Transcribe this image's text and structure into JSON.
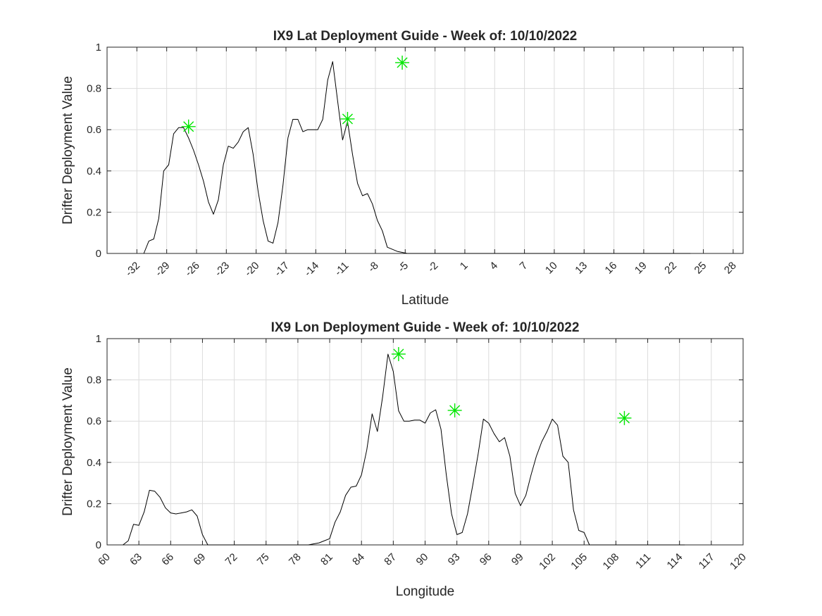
{
  "chart_data": [
    {
      "type": "line",
      "title": "IX9 Lat Deployment Guide - Week of: 10/10/2022",
      "xlabel": "Latitude",
      "ylabel": "Drifter Deployment Value",
      "xlim": [
        -35,
        29
      ],
      "ylim": [
        0,
        1
      ],
      "grid": true,
      "x_ticks": [
        -32,
        -29,
        -26,
        -23,
        -20,
        -17,
        -14,
        -11,
        -8,
        -5,
        -2,
        1,
        4,
        7,
        10,
        13,
        16,
        19,
        22,
        25,
        28
      ],
      "x_tick_labels": [
        "-32",
        "-29",
        "-26",
        "-23",
        "-20",
        "-17",
        "-14",
        "-11",
        "-8",
        "-5",
        "-2",
        "1",
        "4",
        "7",
        "10",
        "13",
        "16",
        "19",
        "22",
        "25",
        "28"
      ],
      "y_ticks": [
        0,
        0.2,
        0.4,
        0.6,
        0.8,
        1
      ],
      "y_tick_labels": [
        "0",
        "0.2",
        "0.4",
        "0.6",
        "0.8",
        "1"
      ],
      "series": [
        {
          "color": "#000000",
          "x": [
            -31.3,
            -30.8,
            -30.3,
            -29.8,
            -29.3,
            -28.8,
            -28.3,
            -27.8,
            -27.3,
            -26.8,
            -26.3,
            -25.8,
            -25.3,
            -24.8,
            -24.3,
            -23.8,
            -23.3,
            -22.8,
            -22.3,
            -21.8,
            -21.3,
            -20.8,
            -20.3,
            -19.8,
            -19.3,
            -18.8,
            -18.3,
            -17.8,
            -17.3,
            -16.8,
            -16.3,
            -15.8,
            -15.3,
            -14.8,
            -14.3,
            -13.8,
            -13.3,
            -12.8,
            -12.3,
            -11.8,
            -11.3,
            -10.8,
            -10.3,
            -9.8,
            -9.3,
            -8.8,
            -8.3,
            -7.8,
            -7.3,
            -6.8,
            -6.3,
            -5.8,
            -5.3,
            -4.8,
            -4.3,
            -3.8,
            -3.3,
            -2.8,
            -2.3,
            -1.8,
            -1.3,
            -0.8,
            -0.3,
            0.2,
            0.7,
            1.2,
            1.7,
            2.2,
            2.7,
            3.2,
            3.7,
            4.2,
            4.7,
            5.2,
            5.7,
            6.2,
            6.7,
            7.2,
            9.2,
            9.7,
            10.2,
            10.7,
            11.2,
            11.7,
            12.2,
            12.7,
            13.2,
            13.7,
            14.2,
            14.7,
            15.2,
            15.7,
            16.2,
            16.7,
            17.2,
            17.7,
            18.2,
            18.7,
            19.2,
            19.7,
            20.2,
            20.7,
            21.2,
            21.7,
            22.2,
            22.7,
            23.2,
            23.7
          ],
          "values": [
            0.0,
            0.06,
            0.07,
            0.17,
            0.4,
            0.43,
            0.58,
            0.61,
            0.61,
            0.56,
            0.5,
            0.43,
            0.35,
            0.25,
            0.19,
            0.26,
            0.43,
            0.52,
            0.51,
            0.54,
            0.59,
            0.61,
            0.48,
            0.3,
            0.16,
            0.06,
            0.05,
            0.15,
            0.33,
            0.56,
            0.65,
            0.65,
            0.59,
            0.6,
            0.6,
            0.6,
            0.65,
            0.84,
            0.93,
            0.74,
            0.55,
            0.64,
            0.48,
            0.34,
            0.28,
            0.29,
            0.24,
            0.16,
            0.11,
            0.03,
            0.02,
            0.01,
            0.005,
            0.0,
            0.0,
            0.0,
            0.0,
            0.0,
            0.0,
            0.0,
            0.0,
            0.0,
            0.0,
            0.0,
            0.0,
            0.0,
            0.0,
            0.0,
            0.0,
            0.0,
            0.0,
            0.0,
            0.0,
            0.0,
            0.0,
            0.0,
            0.0,
            0.0,
            0.0,
            0.0,
            0.0,
            0.0,
            0.0,
            0.0,
            0.0,
            0.0,
            0.0,
            0.0,
            0.0,
            0.0,
            0.0,
            0.0,
            0.0,
            0.0,
            0.0,
            0.0,
            0.0,
            0.0,
            0.0,
            0.0,
            0.0,
            0.0,
            0.0,
            0.0,
            0.0,
            0.0,
            0.0,
            0.0
          ]
        }
      ],
      "markers": {
        "color": "#00e600",
        "symbol": "asterisk",
        "x": [
          -26.8,
          -10.8,
          -5.3
        ],
        "y": [
          0.615,
          0.652,
          0.925
        ]
      }
    },
    {
      "type": "line",
      "title": "IX9 Lon Deployment Guide - Week of: 10/10/2022",
      "xlabel": "Longitude",
      "ylabel": "Drifter Deployment Value",
      "xlim": [
        60,
        120
      ],
      "ylim": [
        0,
        1
      ],
      "grid": true,
      "x_ticks": [
        60,
        63,
        66,
        69,
        72,
        75,
        78,
        81,
        84,
        87,
        90,
        93,
        96,
        99,
        102,
        105,
        108,
        111,
        114,
        117,
        120
      ],
      "x_tick_labels": [
        "60",
        "63",
        "66",
        "69",
        "72",
        "75",
        "78",
        "81",
        "84",
        "87",
        "90",
        "93",
        "96",
        "99",
        "102",
        "105",
        "108",
        "111",
        "114",
        "117",
        "120"
      ],
      "y_ticks": [
        0,
        0.2,
        0.4,
        0.6,
        0.8,
        1
      ],
      "y_tick_labels": [
        "0",
        "0.2",
        "0.4",
        "0.6",
        "0.8",
        "1"
      ],
      "series": [
        {
          "color": "#000000",
          "x": [
            61.5,
            62.0,
            62.5,
            63.0,
            63.5,
            64.0,
            64.5,
            65.0,
            65.5,
            66.0,
            66.5,
            67.0,
            67.5,
            68.0,
            68.5,
            69.0,
            69.5,
            70.0,
            70.5,
            71.0,
            71.5,
            72.0,
            72.5,
            73.0,
            73.5,
            74.0,
            74.5,
            75.0,
            75.5,
            76.0,
            78.0,
            78.5,
            79.0,
            79.5,
            80.0,
            80.5,
            81.0,
            81.5,
            82.0,
            82.5,
            83.0,
            83.5,
            84.0,
            84.5,
            85.0,
            85.5,
            86.0,
            86.5,
            87.0,
            87.5,
            88.0,
            88.5,
            89.0,
            89.5,
            90.0,
            90.5,
            91.0,
            91.5,
            92.0,
            92.5,
            93.0,
            93.5,
            94.0,
            94.5,
            95.0,
            95.5,
            96.0,
            96.5,
            97.0,
            97.5,
            98.0,
            98.5,
            99.0,
            99.5,
            100.0,
            100.5,
            101.0,
            101.5,
            102.0,
            102.5,
            103.0,
            103.5,
            104.0,
            104.5,
            105.0,
            105.5,
            106.0,
            106.5,
            107.0,
            107.5,
            108.0,
            108.5,
            109.0,
            109.5,
            110.0,
            110.5,
            111.0,
            111.5,
            112.0,
            112.5,
            113.0,
            113.5,
            114.0,
            114.5
          ],
          "values": [
            0.0,
            0.02,
            0.1,
            0.095,
            0.16,
            0.265,
            0.26,
            0.23,
            0.18,
            0.155,
            0.15,
            0.155,
            0.16,
            0.17,
            0.14,
            0.05,
            0.0,
            0.0,
            0.0,
            0.0,
            0.0,
            0.0,
            0.0,
            0.0,
            0.0,
            0.0,
            0.0,
            0.0,
            0.0,
            0.0,
            0.0,
            0.0,
            0.0,
            0.005,
            0.01,
            0.02,
            0.03,
            0.11,
            0.16,
            0.24,
            0.28,
            0.285,
            0.34,
            0.46,
            0.635,
            0.55,
            0.72,
            0.925,
            0.84,
            0.65,
            0.6,
            0.6,
            0.605,
            0.605,
            0.59,
            0.64,
            0.655,
            0.56,
            0.34,
            0.15,
            0.05,
            0.06,
            0.15,
            0.29,
            0.44,
            0.61,
            0.59,
            0.54,
            0.5,
            0.52,
            0.43,
            0.25,
            0.19,
            0.24,
            0.34,
            0.43,
            0.5,
            0.55,
            0.61,
            0.58,
            0.43,
            0.4,
            0.17,
            0.07,
            0.06,
            0.0,
            0.0,
            0.0,
            0.0,
            0.0,
            0.0,
            0.0,
            0.0,
            0.0,
            0.0,
            0.0,
            0.0,
            0.0,
            0.0,
            0.0,
            0.0,
            0.0,
            0.0,
            0.0
          ]
        }
      ],
      "markers": {
        "color": "#00e600",
        "symbol": "asterisk",
        "x": [
          87.5,
          92.8,
          108.8
        ],
        "y": [
          0.925,
          0.652,
          0.615
        ]
      }
    }
  ]
}
